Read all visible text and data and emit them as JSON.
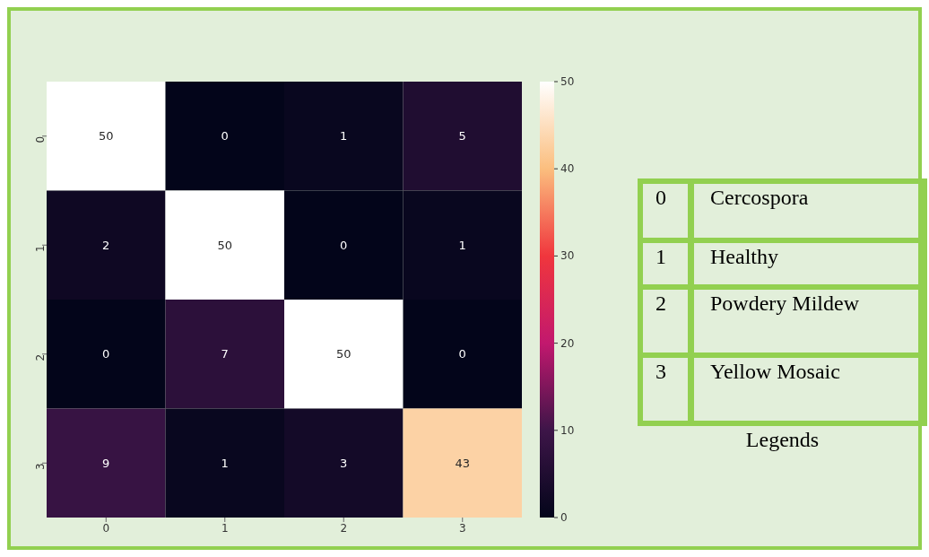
{
  "chart_data": [
    {
      "type": "heatmap",
      "categories": [
        "0",
        "1",
        "2",
        "3"
      ],
      "y_categories": [
        "0",
        "1",
        "2",
        "3"
      ],
      "cells": [
        [
          50,
          0,
          1,
          5
        ],
        [
          2,
          50,
          0,
          1
        ],
        [
          0,
          7,
          50,
          0
        ],
        [
          9,
          1,
          3,
          43
        ]
      ],
      "clim": [
        0,
        50
      ],
      "cticks": [
        0,
        10,
        20,
        30,
        40,
        50
      ],
      "data_labels": true
    },
    {
      "type": "other",
      "title": "Legends",
      "annotations": [
        "0\tCercospora",
        "1\tHealthy",
        "2\tPowdery Mildew",
        "3\tYellow Mosaic"
      ]
    }
  ]
}
